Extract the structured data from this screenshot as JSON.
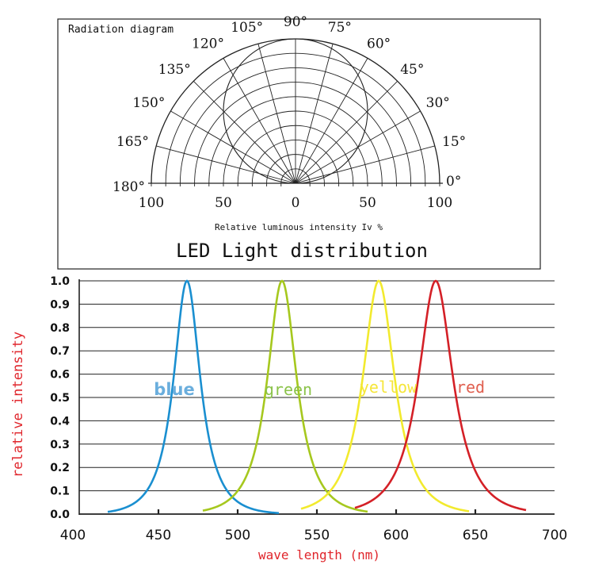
{
  "chart_data": [
    {
      "type": "polar",
      "title": "Radiation diagram",
      "caption": "LED Light distribution",
      "xlabel": "Relative luminous intensity Iv %",
      "angle_labels": [
        "0°",
        "15°",
        "30°",
        "45°",
        "60°",
        "75°",
        "90°",
        "105°",
        "120°",
        "135°",
        "150°",
        "165°",
        "180°"
      ],
      "angles": [
        0,
        15,
        30,
        45,
        60,
        75,
        90,
        105,
        120,
        135,
        150,
        165,
        180
      ],
      "radial_tick_labels": [
        "100",
        "50",
        "0",
        "50",
        "100"
      ],
      "radial_ticks": [
        100,
        50,
        0,
        50,
        100
      ],
      "radial_grid": [
        10,
        20,
        30,
        40,
        50,
        60,
        70,
        80,
        90,
        100
      ],
      "pattern": {
        "name": "",
        "shape": "circle",
        "points": [
          {
            "angle": 0,
            "intensity": 0
          },
          {
            "angle": 15,
            "intensity": 26
          },
          {
            "angle": 30,
            "intensity": 50
          },
          {
            "angle": 45,
            "intensity": 71
          },
          {
            "angle": 60,
            "intensity": 87
          },
          {
            "angle": 75,
            "intensity": 97
          },
          {
            "angle": 90,
            "intensity": 100
          },
          {
            "angle": 105,
            "intensity": 97
          },
          {
            "angle": 120,
            "intensity": 87
          },
          {
            "angle": 135,
            "intensity": 71
          },
          {
            "angle": 150,
            "intensity": 50
          },
          {
            "angle": 165,
            "intensity": 26
          },
          {
            "angle": 180,
            "intensity": 0
          }
        ]
      }
    },
    {
      "type": "line",
      "title": "",
      "xlabel": "wave length (nm)",
      "ylabel": "relative intensity",
      "xlim": [
        400,
        700
      ],
      "ylim": [
        0,
        1.0
      ],
      "x_ticks": [
        400,
        450,
        500,
        550,
        600,
        650,
        700
      ],
      "x_tick_labels": [
        "400",
        "450",
        "500",
        "550",
        "600",
        "650",
        "700"
      ],
      "y_ticks": [
        0,
        0.1,
        0.2,
        0.3,
        0.4,
        0.5,
        0.6,
        0.7,
        0.8,
        0.9,
        1.0
      ],
      "y_tick_labels": [
        "0.0",
        "0.1",
        "0.2",
        "0.3",
        "0.4",
        "0.5",
        "0.6",
        "0.7",
        "0.8",
        "0.9",
        "1.0"
      ],
      "grid": true,
      "series": [
        {
          "name": "blue",
          "color": "#1a8fd0",
          "label_color": "#6aaedd",
          "peak": 468,
          "half_width": 10,
          "x_start": 418,
          "x_end": 526,
          "label_x": 460,
          "label_y": 0.53
        },
        {
          "name": "green",
          "color": "#a6c81e",
          "label_color": "#8bc34a",
          "peak": 528,
          "half_width": 11,
          "x_start": 478,
          "x_end": 582,
          "label_x": 532,
          "label_y": 0.53
        },
        {
          "name": "yellow",
          "color": "#f2ea2e",
          "label_color": "#f5e63a",
          "peak": 589,
          "half_width": 12,
          "x_start": 540,
          "x_end": 646,
          "label_x": 595,
          "label_y": 0.54
        },
        {
          "name": "red",
          "color": "#d42027",
          "label_color": "#e06050",
          "peak": 625,
          "half_width": 13,
          "x_start": 574,
          "x_end": 682,
          "label_x": 647,
          "label_y": 0.54
        }
      ]
    }
  ]
}
